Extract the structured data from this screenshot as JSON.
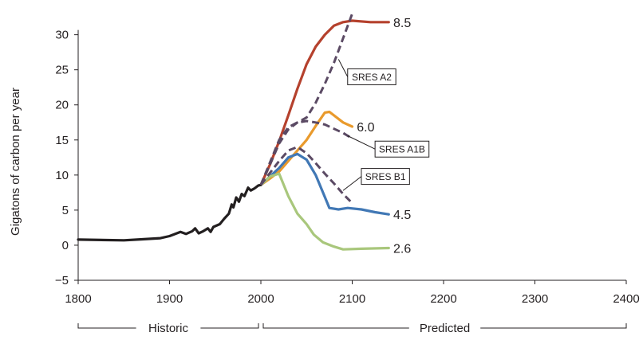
{
  "chart_data": {
    "type": "line",
    "title": "",
    "xlabel": "",
    "ylabel": "Gigatons of carbon per year",
    "xlim": [
      1800,
      2400
    ],
    "ylim": [
      -5,
      32
    ],
    "x_ticks": [
      "1800",
      "1900",
      "2000",
      "2100",
      "2200",
      "2300",
      "2400"
    ],
    "y_ticks": [
      "−5",
      "0",
      "5",
      "10",
      "15",
      "20",
      "25",
      "30"
    ],
    "grid": false,
    "periods": [
      {
        "label": "Historic",
        "from": 1800,
        "to": 2000
      },
      {
        "label": "Predicted",
        "from": 2000,
        "to": 2400
      }
    ],
    "series": [
      {
        "name": "",
        "color": "#231f20",
        "style": "solid",
        "points": [
          [
            1800,
            0.8
          ],
          [
            1850,
            0.7
          ],
          [
            1870,
            0.85
          ],
          [
            1890,
            1.0
          ],
          [
            1900,
            1.3
          ],
          [
            1912,
            1.9
          ],
          [
            1918,
            1.6
          ],
          [
            1925,
            2.0
          ],
          [
            1928,
            2.4
          ],
          [
            1932,
            1.7
          ],
          [
            1937,
            2.0
          ],
          [
            1942,
            2.4
          ],
          [
            1945,
            1.9
          ],
          [
            1948,
            2.6
          ],
          [
            1955,
            3.0
          ],
          [
            1960,
            3.8
          ],
          [
            1965,
            4.5
          ],
          [
            1968,
            5.8
          ],
          [
            1970,
            5.4
          ],
          [
            1973,
            6.8
          ],
          [
            1976,
            6.2
          ],
          [
            1979,
            7.3
          ],
          [
            1982,
            7.0
          ],
          [
            1986,
            8.2
          ],
          [
            1989,
            7.8
          ],
          [
            1993,
            8.1
          ],
          [
            1997,
            8.5
          ],
          [
            2000,
            8.6
          ]
        ]
      },
      {
        "name": "8.5",
        "color": "#b5412d",
        "style": "solid",
        "points": [
          [
            2000,
            8.6
          ],
          [
            2010,
            11.5
          ],
          [
            2020,
            14.8
          ],
          [
            2030,
            18.5
          ],
          [
            2040,
            22.3
          ],
          [
            2050,
            25.8
          ],
          [
            2060,
            28.3
          ],
          [
            2070,
            30.0
          ],
          [
            2080,
            31.3
          ],
          [
            2090,
            31.8
          ],
          [
            2100,
            32.0
          ],
          [
            2120,
            31.8
          ],
          [
            2140,
            31.8
          ]
        ]
      },
      {
        "name": "6.0",
        "color": "#e99a2c",
        "style": "solid",
        "points": [
          [
            2000,
            8.6
          ],
          [
            2010,
            9.5
          ],
          [
            2020,
            10.5
          ],
          [
            2030,
            12.0
          ],
          [
            2040,
            13.5
          ],
          [
            2050,
            15.0
          ],
          [
            2060,
            17.0
          ],
          [
            2070,
            18.9
          ],
          [
            2075,
            19.0
          ],
          [
            2080,
            18.5
          ],
          [
            2090,
            17.5
          ],
          [
            2100,
            16.9
          ]
        ]
      },
      {
        "name": "4.5",
        "color": "#4178b5",
        "style": "solid",
        "points": [
          [
            2000,
            8.6
          ],
          [
            2010,
            9.8
          ],
          [
            2020,
            11.0
          ],
          [
            2030,
            12.5
          ],
          [
            2040,
            13.0
          ],
          [
            2050,
            12.2
          ],
          [
            2060,
            10.0
          ],
          [
            2068,
            7.5
          ],
          [
            2075,
            5.3
          ],
          [
            2085,
            5.1
          ],
          [
            2095,
            5.3
          ],
          [
            2110,
            5.1
          ],
          [
            2125,
            4.7
          ],
          [
            2140,
            4.4
          ]
        ]
      },
      {
        "name": "2.6",
        "color": "#a9c77c",
        "style": "solid",
        "points": [
          [
            2000,
            8.6
          ],
          [
            2010,
            9.8
          ],
          [
            2020,
            10.2
          ],
          [
            2030,
            7.0
          ],
          [
            2040,
            4.5
          ],
          [
            2050,
            3.0
          ],
          [
            2058,
            1.5
          ],
          [
            2068,
            0.4
          ],
          [
            2080,
            -0.2
          ],
          [
            2090,
            -0.6
          ],
          [
            2110,
            -0.5
          ],
          [
            2140,
            -0.4
          ]
        ]
      },
      {
        "name": "SRES A2",
        "color": "#5b4a64",
        "style": "dashed",
        "points": [
          [
            2000,
            8.6
          ],
          [
            2010,
            11.5
          ],
          [
            2020,
            14.5
          ],
          [
            2030,
            16.5
          ],
          [
            2040,
            17.5
          ],
          [
            2050,
            18.2
          ],
          [
            2060,
            20.3
          ],
          [
            2070,
            23.0
          ],
          [
            2080,
            26.0
          ],
          [
            2090,
            29.5
          ],
          [
            2100,
            33.0
          ]
        ]
      },
      {
        "name": "SRES A1B",
        "color": "#5b4a64",
        "style": "dashed",
        "points": [
          [
            2000,
            8.6
          ],
          [
            2010,
            11.8
          ],
          [
            2020,
            15.0
          ],
          [
            2030,
            16.8
          ],
          [
            2040,
            17.5
          ],
          [
            2050,
            17.7
          ],
          [
            2060,
            17.5
          ],
          [
            2070,
            17.2
          ],
          [
            2080,
            16.6
          ],
          [
            2090,
            16.0
          ],
          [
            2100,
            15.2
          ]
        ]
      },
      {
        "name": "SRES B1",
        "color": "#5b4a64",
        "style": "dashed",
        "points": [
          [
            2000,
            8.6
          ],
          [
            2010,
            10.3
          ],
          [
            2020,
            12.0
          ],
          [
            2030,
            13.5
          ],
          [
            2040,
            14.0
          ],
          [
            2050,
            13.1
          ],
          [
            2060,
            11.7
          ],
          [
            2070,
            10.2
          ],
          [
            2080,
            8.8
          ],
          [
            2090,
            7.3
          ],
          [
            2100,
            6.0
          ]
        ]
      }
    ],
    "series_labels": [
      {
        "text": "8.5",
        "x": 2145,
        "y": 31.8,
        "boxed": false
      },
      {
        "text": "6.0",
        "x": 2105,
        "y": 16.9,
        "boxed": false
      },
      {
        "text": "4.5",
        "x": 2145,
        "y": 4.4,
        "boxed": false
      },
      {
        "text": "2.6",
        "x": 2145,
        "y": -0.4,
        "boxed": false
      },
      {
        "text": "SRES A2",
        "x": 2095,
        "y": 24,
        "boxed": true,
        "pointer_to": [
          2085,
          26.5
        ]
      },
      {
        "text": "SRES A1B",
        "x": 2125,
        "y": 13.7,
        "boxed": true,
        "pointer_to": [
          2095,
          15.6
        ]
      },
      {
        "text": "SRES B1",
        "x": 2110,
        "y": 9.8,
        "boxed": true,
        "pointer_to": [
          2090,
          7.8
        ]
      }
    ]
  }
}
